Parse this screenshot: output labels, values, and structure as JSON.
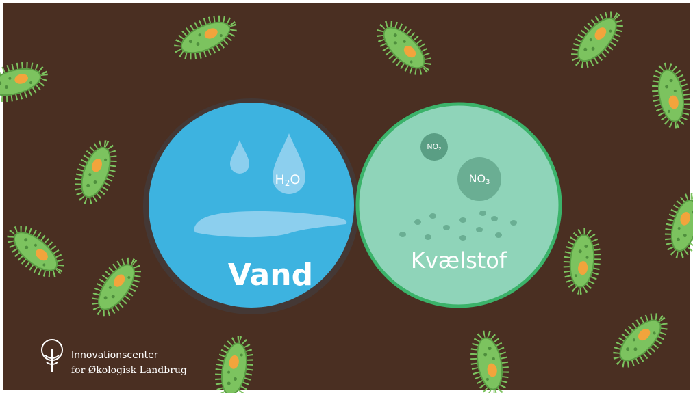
{
  "water": {
    "label": "Vand",
    "formula": [
      "H",
      "2",
      "O"
    ]
  },
  "nitrogen": {
    "label": "Kvælstof",
    "molecules": [
      [
        "NO",
        "2"
      ],
      [
        "NO",
        "3"
      ]
    ]
  },
  "logo": {
    "line1": "Innovationscenter",
    "line2": "for Økologisk Landbrug"
  }
}
